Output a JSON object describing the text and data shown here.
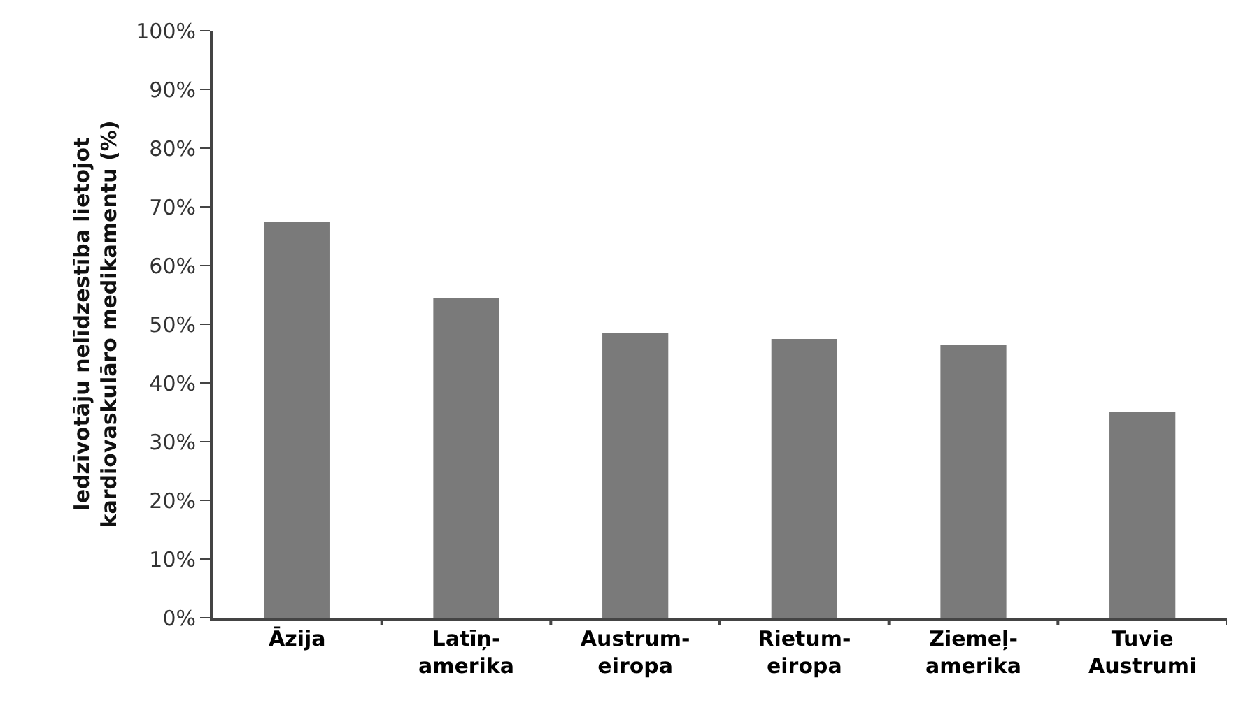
{
  "chart_data": {
    "type": "bar",
    "ylabel": "Iedzīvotāju nelīdzestība lietojot\nkardiovaskulāro medikamentu (%)",
    "categories": [
      "Āzija",
      "Latīņ-\namerika",
      "Austrum-\neiropa",
      "Rietum-\neiropa",
      "Ziemeļ-\namerika",
      "Tuvie\nAustrumi"
    ],
    "values": [
      67.5,
      54.5,
      48.5,
      47.5,
      46.5,
      35
    ],
    "color": "#7a7a7a",
    "ylim": [
      0,
      100
    ],
    "yticks": [
      {
        "value": 0,
        "label": "0%"
      },
      {
        "value": 10,
        "label": "10%"
      },
      {
        "value": 20,
        "label": "20%"
      },
      {
        "value": 30,
        "label": "30%"
      },
      {
        "value": 40,
        "label": "40%"
      },
      {
        "value": 50,
        "label": "50%"
      },
      {
        "value": 60,
        "label": "60%"
      },
      {
        "value": 70,
        "label": "70%"
      },
      {
        "value": 80,
        "label": "80%"
      },
      {
        "value": 90,
        "label": "90%"
      },
      {
        "value": 100,
        "label": "100%"
      }
    ],
    "grid": false
  }
}
